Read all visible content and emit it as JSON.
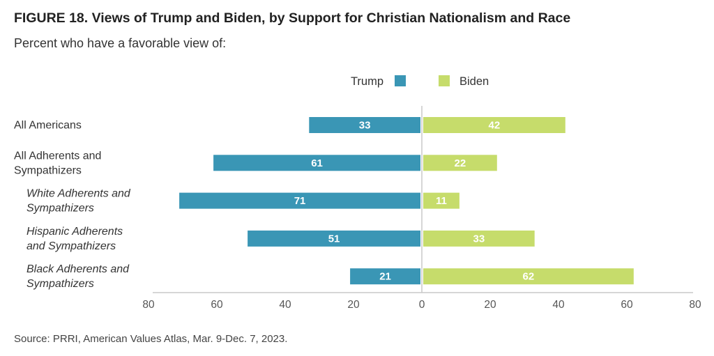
{
  "title": "FIGURE 18. Views of Trump and Biden, by Support for Christian Nationalism and Race",
  "subtitle": "Percent who have a favorable view of:",
  "source": "Source: PRRI, American Values Atlas, Mar. 9-Dec. 7, 2023.",
  "colors": {
    "trump": "#3a96b5",
    "biden": "#c6dc6b",
    "axis": "#c8c8c8",
    "divider": "#c8c8c8"
  },
  "chart_data": {
    "type": "bar",
    "orientation": "horizontal-diverging",
    "title": "FIGURE 18. Views of Trump and Biden, by Support for Christian Nationalism and Race",
    "subtitle": "Percent who have a favorable view of:",
    "categories": [
      {
        "lines": [
          "All Americans"
        ],
        "italic": false
      },
      {
        "lines": [
          "All Adherents and",
          "Sympathizers"
        ],
        "italic": false
      },
      {
        "lines": [
          "White Adherents and",
          "Sympathizers"
        ],
        "italic": true
      },
      {
        "lines": [
          "Hispanic Adherents",
          "and Sympathizers"
        ],
        "italic": true
      },
      {
        "lines": [
          "Black Adherents and",
          "Sympathizers"
        ],
        "italic": true
      }
    ],
    "series": [
      {
        "name": "Trump",
        "direction": "left",
        "color": "#3a96b5",
        "values": [
          33,
          61,
          71,
          51,
          21
        ]
      },
      {
        "name": "Biden",
        "direction": "right",
        "color": "#c6dc6b",
        "values": [
          42,
          22,
          11,
          33,
          62
        ]
      }
    ],
    "xlim": [
      -80,
      80
    ],
    "ticks": [
      -80,
      -60,
      -40,
      -20,
      0,
      20,
      40,
      60,
      80
    ],
    "tick_labels": [
      "80",
      "60",
      "40",
      "20",
      "0",
      "20",
      "40",
      "60",
      "80"
    ],
    "legend": {
      "position": "top-center",
      "entries": [
        "Trump",
        "Biden"
      ]
    },
    "grid": false
  }
}
